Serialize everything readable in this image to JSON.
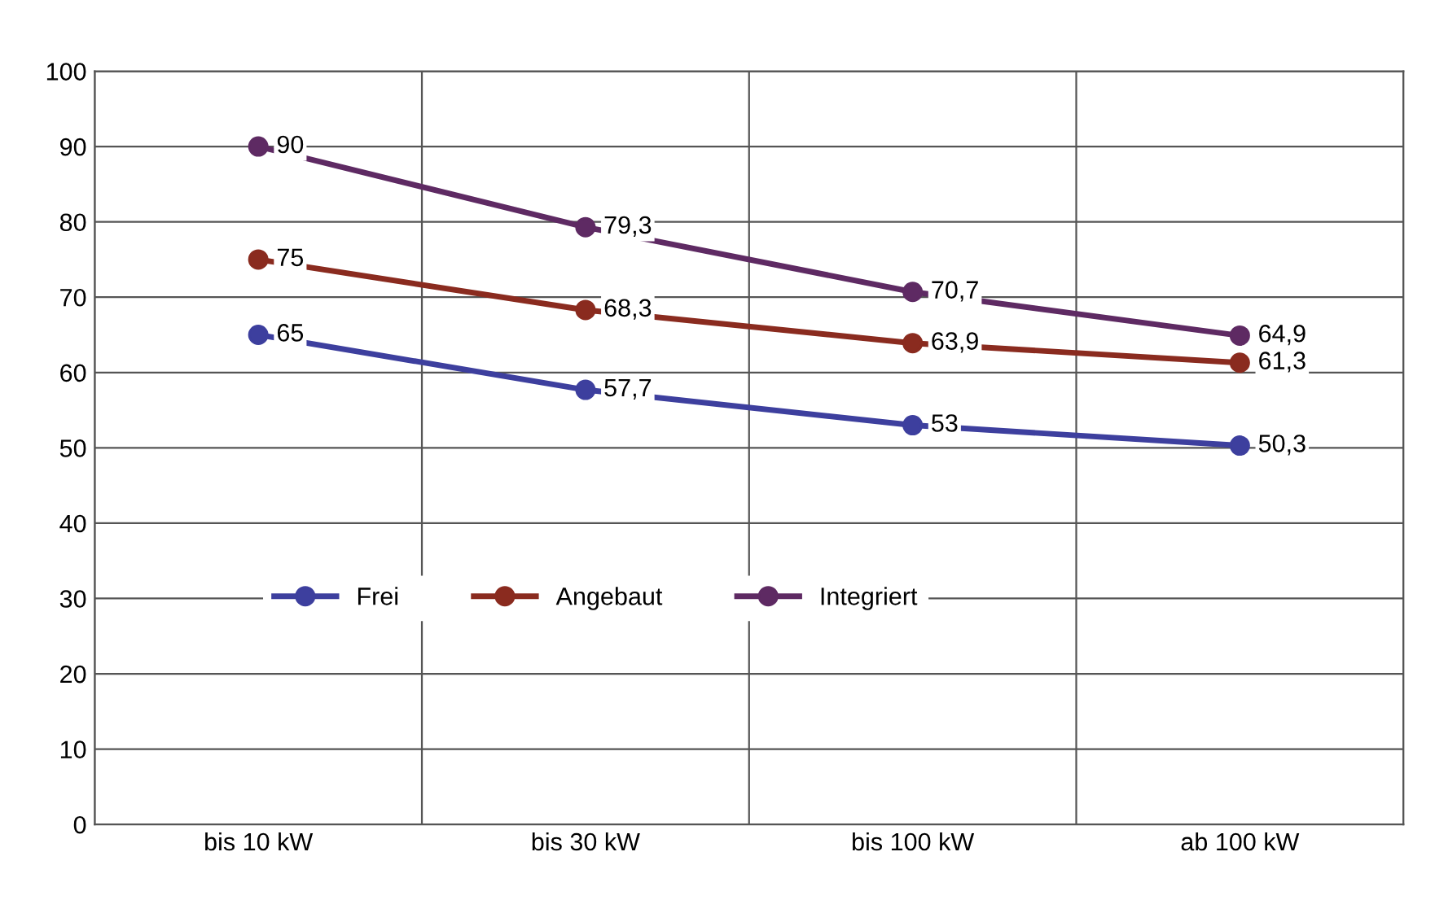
{
  "chart_data": {
    "type": "line",
    "categories": [
      "bis 10 kW",
      "bis 30 kW",
      "bis 100 kW",
      "ab 100 kW"
    ],
    "series": [
      {
        "name": "Frei",
        "color": "#3d3f9e",
        "values": [
          65,
          57.7,
          53,
          50.3
        ],
        "value_labels": [
          "65",
          "57,7",
          "53",
          "50,3"
        ]
      },
      {
        "name": "Angebaut",
        "color": "#8a2b1f",
        "values": [
          75,
          68.3,
          63.9,
          61.3
        ],
        "value_labels": [
          "75",
          "68,3",
          "63,9",
          "61,3"
        ]
      },
      {
        "name": "Integriert",
        "color": "#5e2a63",
        "values": [
          90,
          79.3,
          70.7,
          64.9
        ],
        "value_labels": [
          "90",
          "79,3",
          "70,7",
          "64,9"
        ]
      }
    ],
    "ylim": [
      0,
      100
    ],
    "yticks": [
      0,
      10,
      20,
      30,
      40,
      50,
      60,
      70,
      80,
      90,
      100
    ],
    "grid": true,
    "legend": "center left",
    "marker": "circle",
    "line_style": "solid"
  }
}
